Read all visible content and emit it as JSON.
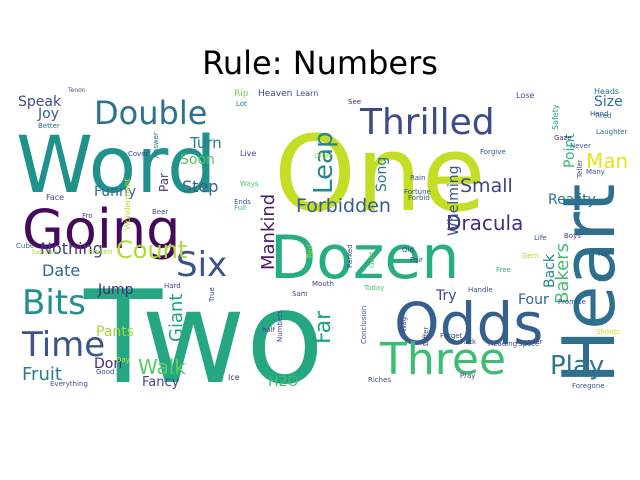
{
  "title": "Rule: Numbers",
  "words": [
    {
      "text": "Two",
      "color": "#26a784"
    },
    {
      "text": "One",
      "color": "#c3de24"
    },
    {
      "text": "Word",
      "color": "#20928c"
    },
    {
      "text": "Heart",
      "color": "#2f6f8e"
    },
    {
      "text": "Dozen",
      "color": "#27ad81"
    },
    {
      "text": "Going",
      "color": "#46095c"
    },
    {
      "text": "Odds",
      "color": "#355f8d"
    },
    {
      "text": "Three",
      "color": "#3dbc74"
    },
    {
      "text": "Thrilled",
      "color": "#3e4b89"
    },
    {
      "text": "Double",
      "color": "#2c728e"
    },
    {
      "text": "Time",
      "color": "#3a548c"
    },
    {
      "text": "Bits",
      "color": "#21908d"
    },
    {
      "text": "Six",
      "color": "#3b518b"
    },
    {
      "text": "Play",
      "color": "#2a778e"
    },
    {
      "text": "Leap",
      "color": "#23888e"
    },
    {
      "text": "Count",
      "color": "#addc30"
    },
    {
      "text": "Walk",
      "color": "#5ec962"
    },
    {
      "text": "Dracula",
      "color": "#472d7b"
    },
    {
      "text": "Forbidden",
      "color": "#365d8d"
    },
    {
      "text": "Small",
      "color": "#404588"
    },
    {
      "text": "Fruit",
      "color": "#287c8e"
    },
    {
      "text": "Far",
      "color": "#1fa088"
    },
    {
      "text": "Man",
      "color": "#e5e419"
    },
    {
      "text": "Mankind",
      "color": "#48186a"
    },
    {
      "text": "Giant",
      "color": "#1fa287"
    },
    {
      "text": "Bakers",
      "color": "#44bf70"
    },
    {
      "text": "Date",
      "color": "#31688e"
    },
    {
      "text": "Nothing",
      "color": "#443a83"
    },
    {
      "text": "Step",
      "color": "#33638d"
    },
    {
      "text": "Song",
      "color": "#2a788e"
    },
    {
      "text": "Reality",
      "color": "#2b758e"
    },
    {
      "text": "Whelming",
      "color": "#3b528b"
    },
    {
      "text": "Back",
      "color": "#25858e"
    },
    {
      "text": "Point",
      "color": "#35b779"
    },
    {
      "text": "Size",
      "color": "#2c728e"
    },
    {
      "text": "Speak",
      "color": "#3e4a89"
    },
    {
      "text": "Turn",
      "color": "#287d8e"
    },
    {
      "text": "Soon",
      "color": "#52c569"
    },
    {
      "text": "Funny",
      "color": "#30698e"
    },
    {
      "text": "Jump",
      "color": "#482677"
    },
    {
      "text": "Joy",
      "color": "#365c8d"
    },
    {
      "text": "Pants",
      "color": "#a2da37"
    },
    {
      "text": "Fancy",
      "color": "#414487"
    },
    {
      "text": "Don",
      "color": "#472c7a"
    },
    {
      "text": "Try",
      "color": "#3f4788"
    },
    {
      "text": "Four",
      "color": "#33628d"
    },
    {
      "text": "H2O",
      "color": "#42be71"
    },
    {
      "text": "Par",
      "color": "#443b84"
    },
    {
      "text": "Rip",
      "color": "#6ccd5a"
    },
    {
      "text": "Heaven",
      "color": "#3f4889"
    },
    {
      "text": "Learn",
      "color": "#3e4c8a"
    },
    {
      "text": "Lose",
      "color": "#3b528b"
    },
    {
      "text": "Heads",
      "color": "#2e6d8e"
    },
    {
      "text": "Safety",
      "color": "#1f9f88"
    },
    {
      "text": "Tenon",
      "color": "#3b528b"
    },
    {
      "text": "Better",
      "color": "#2c728e"
    },
    {
      "text": "Lot",
      "color": "#2c738e"
    },
    {
      "text": "See",
      "color": "#482475"
    },
    {
      "text": "Hand",
      "color": "#3a548c"
    },
    {
      "text": "Tired",
      "color": "#2c728e"
    },
    {
      "text": "Laughter",
      "color": "#2e6e8e"
    },
    {
      "text": "Gaze",
      "color": "#46337f"
    },
    {
      "text": "Cover",
      "color": "#433e85"
    },
    {
      "text": "Answer",
      "color": "#2e6f8e"
    },
    {
      "text": "Live",
      "color": "#3f4889"
    },
    {
      "text": "Forgive",
      "color": "#3c508b"
    },
    {
      "text": "Never",
      "color": "#34608d"
    },
    {
      "text": "Many",
      "color": "#3c508b"
    },
    {
      "text": "Teller",
      "color": "#3d4e8a"
    },
    {
      "text": "Face",
      "color": "#404688"
    },
    {
      "text": "Often",
      "color": "#a8db34"
    },
    {
      "text": "Ways",
      "color": "#4ac16d"
    },
    {
      "text": "Rain",
      "color": "#3b518b"
    },
    {
      "text": "Fortune",
      "color": "#3d4d8a"
    },
    {
      "text": "Forbid",
      "color": "#375a8c"
    },
    {
      "text": "Beer",
      "color": "#3c4f8a"
    },
    {
      "text": "Ends",
      "color": "#3b528b"
    },
    {
      "text": "Full",
      "color": "#2fb47c"
    },
    {
      "text": "Fro",
      "color": "#3e4989"
    },
    {
      "text": "Wonderment",
      "color": "#bade28"
    },
    {
      "text": "Boys",
      "color": "#3f4889"
    },
    {
      "text": "Cube",
      "color": "#2e6e8e"
    },
    {
      "text": "Broken",
      "color": "#a5db36"
    },
    {
      "text": "Life",
      "color": "#3d4d8a"
    },
    {
      "text": "Free",
      "color": "#2db27d"
    },
    {
      "text": "Pair",
      "color": "#404588"
    },
    {
      "text": "Old",
      "color": "#3e4a89"
    },
    {
      "text": "Gold",
      "color": "#56c667"
    },
    {
      "text": "Parked",
      "color": "#3e4989"
    },
    {
      "text": "Mouth",
      "color": "#3f4788"
    },
    {
      "text": "Today",
      "color": "#4cc26c"
    },
    {
      "text": "Hard",
      "color": "#3f4889"
    },
    {
      "text": "Red",
      "color": "#a0da39"
    },
    {
      "text": "True",
      "color": "#3e4a89"
    },
    {
      "text": "Sam",
      "color": "#3e4a89"
    },
    {
      "text": "Handle",
      "color": "#3d4e8a"
    },
    {
      "text": "Promise",
      "color": "#3c4f8a"
    },
    {
      "text": "Numbers",
      "color": "#3f4889"
    },
    {
      "text": "Conclusion",
      "color": "#3b528b"
    },
    {
      "text": "half",
      "color": "#453781"
    },
    {
      "text": "Wag",
      "color": "#3d4e8a"
    },
    {
      "text": "Forever",
      "color": "#3f4889"
    },
    {
      "text": "Shoots",
      "color": "#d2e21b"
    },
    {
      "text": "Differ",
      "color": "#3e4a89"
    },
    {
      "text": "Pack",
      "color": "#3e4989"
    },
    {
      "text": "Forget",
      "color": "#3c4f8a"
    },
    {
      "text": "Heading",
      "color": "#3b528b"
    },
    {
      "text": "Space",
      "color": "#3b528b"
    },
    {
      "text": "Ice",
      "color": "#472e7c"
    },
    {
      "text": "Riches",
      "color": "#3e4c8a"
    },
    {
      "text": "Pray",
      "color": "#414487"
    },
    {
      "text": "Foregone",
      "color": "#3a548c"
    },
    {
      "text": "Everything",
      "color": "#3d4d8a"
    },
    {
      "text": "Day",
      "color": "#c5e021"
    },
    {
      "text": "Good",
      "color": "#3e4989"
    },
    {
      "text": "Exercise",
      "color": "#a2da37"
    },
    {
      "text": "Gem",
      "color": "#a8db34"
    },
    {
      "text": "Hot",
      "color": "#3e4a89"
    }
  ]
}
